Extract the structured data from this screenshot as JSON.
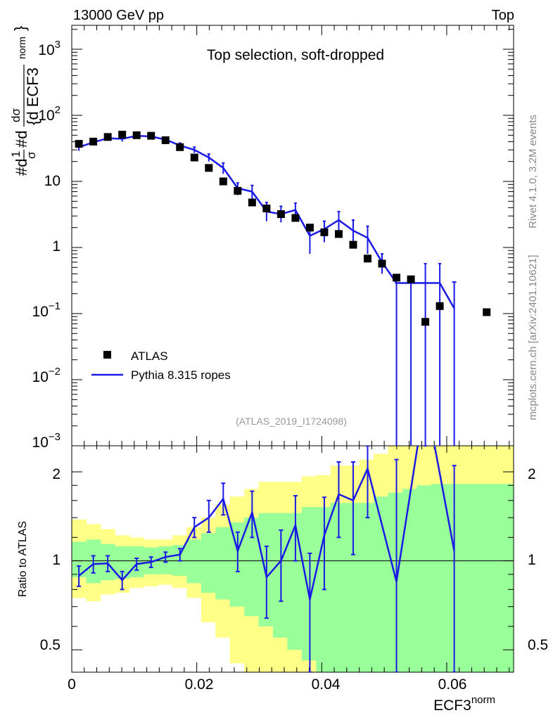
{
  "header": {
    "left": "13000 GeV pp",
    "right": "Top"
  },
  "side_labels": {
    "top": "Rivet 4.1.0,  3.2M events",
    "bottom": "mcplots.cern.ch [arXiv:2401.10621]"
  },
  "main_title": "Top selection, soft-dropped",
  "analysis_ref": "(ATLAS_2019_I1724098)",
  "y_axis_main": {
    "label_parts": [
      "#d",
      "1",
      "σ",
      "#d",
      "dσ",
      "{d ECF3",
      "norm",
      "}"
    ],
    "tick_labels": [
      "10",
      "3",
      "10",
      "2",
      "10",
      "1",
      "10",
      "−1",
      "10",
      "−2",
      "10",
      "−3"
    ]
  },
  "y_axis_ratio": {
    "label": "Ratio to ATLAS",
    "tick_labels": [
      "2",
      "1",
      "0.5"
    ]
  },
  "x_axis": {
    "label": "ECF3",
    "label_sup": "norm",
    "tick_labels": [
      "0",
      "0.02",
      "0.04",
      "0.06"
    ]
  },
  "legend": {
    "data_label": "ATLAS",
    "mc_label": "Pythia 8.315 ropes"
  },
  "colors": {
    "mc": "#1a1ae6",
    "band_inner": "#99ff99",
    "band_outer": "#ffff88"
  },
  "chart_data": [
    {
      "type": "scatter",
      "title": "Top selection, soft-dropped",
      "xlabel": "ECF3^norm",
      "ylabel": "1/σ dσ/d ECF3^norm",
      "yscale": "log",
      "xlim": [
        0,
        0.0707
      ],
      "ylim": [
        0.001,
        2300
      ],
      "series": [
        {
          "name": "ATLAS",
          "x": [
            0.00114,
            0.00345,
            0.00576,
            0.00807,
            0.01038,
            0.01269,
            0.015,
            0.01731,
            0.01962,
            0.02193,
            0.02424,
            0.02655,
            0.02886,
            0.03117,
            0.03348,
            0.03579,
            0.0381,
            0.04041,
            0.04272,
            0.04503,
            0.04734,
            0.04965,
            0.05196,
            0.05427,
            0.05658,
            0.05889,
            0.06639
          ],
          "y": [
            37,
            40,
            47,
            51,
            50,
            49,
            42,
            33,
            23,
            16,
            10,
            7.2,
            4.8,
            3.9,
            3.2,
            2.8,
            2.0,
            1.7,
            1.6,
            1.1,
            0.68,
            0.57,
            0.35,
            0.33,
            0.075,
            0.13,
            0.105
          ]
        },
        {
          "name": "Pythia 8.315 ropes",
          "x": [
            0.00114,
            0.00345,
            0.00576,
            0.00807,
            0.01038,
            0.01269,
            0.015,
            0.01731,
            0.01962,
            0.02193,
            0.02424,
            0.02655,
            0.02886,
            0.03117,
            0.03348,
            0.03579,
            0.0381,
            0.04041,
            0.04272,
            0.04503,
            0.04734,
            0.04965,
            0.05196,
            0.05427,
            0.05658,
            0.05889,
            0.0612
          ],
          "y": [
            33,
            39,
            45,
            44,
            49,
            48,
            43,
            35,
            30,
            23,
            16,
            7.9,
            7.0,
            3.5,
            3.2,
            3.7,
            1.5,
            1.9,
            2.6,
            1.8,
            1.4,
            0.6,
            0.29,
            0.29,
            0.29,
            0.29,
            null
          ],
          "y_err_low": [
            29,
            36,
            42,
            40,
            46,
            45,
            41,
            33,
            27,
            20,
            13,
            6.2,
            5.0,
            2.5,
            2.4,
            2.7,
            0.8,
            1.2,
            1.8,
            1.1,
            0.8,
            0.4,
            0.001,
            0.001,
            0.001,
            0.001,
            null
          ],
          "y_err_high": [
            38,
            43,
            49,
            48,
            53,
            52,
            46,
            38,
            33,
            26,
            19,
            9.5,
            8.7,
            4.8,
            4.2,
            4.7,
            2.1,
            2.5,
            3.5,
            2.6,
            2.1,
            0.8,
            0.29,
            0.29,
            0.57,
            0.57,
            null
          ]
        }
      ]
    },
    {
      "type": "line",
      "title": "Ratio to ATLAS",
      "xlabel": "ECF3^norm",
      "ylabel": "Ratio to ATLAS",
      "yscale": "log",
      "xlim": [
        0,
        0.0707
      ],
      "ylim": [
        0.42,
        2.45
      ],
      "reference_line": 1,
      "mc_ratio": {
        "x": [
          0.00114,
          0.00345,
          0.00576,
          0.00807,
          0.01038,
          0.01269,
          0.015,
          0.01731,
          0.01962,
          0.02193,
          0.02424,
          0.02655,
          0.02886,
          0.03117,
          0.03348,
          0.03579,
          0.0381,
          0.04041,
          0.04272,
          0.04503,
          0.04734,
          0.05196,
          0.05658,
          0.0612
        ],
        "y": [
          0.89,
          0.975,
          0.98,
          0.86,
          0.975,
          0.99,
          1.03,
          1.05,
          1.3,
          1.4,
          1.62,
          1.08,
          1.46,
          0.88,
          1.0,
          1.32,
          0.74,
          1.22,
          1.68,
          1.6,
          2.05,
          0.85,
          3.6,
          1.08
        ],
        "y_low": [
          0.82,
          0.91,
          0.92,
          0.8,
          0.93,
          0.95,
          0.99,
          1.0,
          1.2,
          1.25,
          1.43,
          0.92,
          1.2,
          0.64,
          0.73,
          1.0,
          0.42,
          0.8,
          1.2,
          1.05,
          1.4,
          0.42,
          2.45,
          0.42
        ],
        "y_high": [
          0.96,
          1.04,
          1.04,
          0.92,
          1.02,
          1.03,
          1.07,
          1.1,
          1.4,
          1.6,
          1.83,
          1.25,
          1.72,
          1.12,
          1.27,
          1.66,
          1.06,
          1.64,
          2.16,
          2.16,
          2.45,
          2.2,
          2.45,
          2.1
        ]
      },
      "bands": {
        "edges": [
          0,
          0.0023,
          0.0046,
          0.0069,
          0.0092,
          0.0115,
          0.0138,
          0.0161,
          0.0184,
          0.0207,
          0.023,
          0.0253,
          0.0276,
          0.0299,
          0.0322,
          0.0345,
          0.0368,
          0.0391,
          0.0414,
          0.0437,
          0.046,
          0.0483,
          0.0506,
          0.0529,
          0.0552,
          0.0575,
          0.0598,
          0.0621,
          0.0707
        ],
        "inner_low": [
          0.88,
          0.84,
          0.86,
          0.87,
          0.88,
          0.9,
          0.9,
          0.89,
          0.84,
          0.78,
          0.74,
          0.7,
          0.65,
          0.6,
          0.55,
          0.5,
          0.46,
          0.42,
          0.42,
          0.42,
          0.42,
          0.42,
          0.42,
          0.42,
          0.42,
          0.42,
          0.42,
          0.42
        ],
        "inner_high": [
          1.16,
          1.18,
          1.14,
          1.12,
          1.12,
          1.11,
          1.12,
          1.13,
          1.18,
          1.24,
          1.3,
          1.35,
          1.4,
          1.45,
          1.45,
          1.45,
          1.52,
          1.52,
          1.57,
          1.57,
          1.57,
          1.65,
          1.7,
          1.75,
          1.8,
          1.82,
          1.82,
          1.82
        ],
        "outer_low": [
          0.75,
          0.73,
          0.77,
          0.78,
          0.81,
          0.82,
          0.83,
          0.81,
          0.75,
          0.62,
          0.55,
          0.45,
          0.42,
          0.42,
          0.42,
          0.42,
          0.42,
          0.42,
          0.42,
          0.42,
          0.42,
          0.42,
          0.42,
          0.42,
          0.42,
          0.42,
          0.42,
          0.42
        ],
        "outer_high": [
          1.38,
          1.33,
          1.28,
          1.22,
          1.2,
          1.18,
          1.18,
          1.22,
          1.3,
          1.4,
          1.55,
          1.65,
          1.75,
          1.85,
          1.85,
          1.85,
          1.93,
          1.95,
          2.1,
          2.1,
          2.2,
          2.3,
          2.45,
          2.45,
          2.45,
          2.45,
          2.45,
          2.45
        ]
      }
    }
  ]
}
